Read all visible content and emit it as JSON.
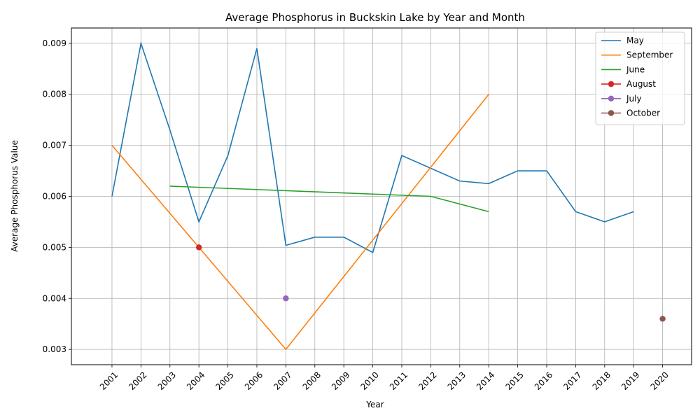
{
  "chart_data": {
    "type": "line",
    "title": "Average Phosphorus in Buckskin Lake by Year and Month",
    "xlabel": "Year",
    "ylabel": "Average Phosphorus Value",
    "xlim": [
      1999.6,
      2021.0
    ],
    "ylim": [
      0.0027,
      0.0093
    ],
    "x_ticks": [
      2001,
      2002,
      2003,
      2004,
      2005,
      2006,
      2007,
      2008,
      2009,
      2010,
      2011,
      2012,
      2013,
      2014,
      2015,
      2016,
      2017,
      2018,
      2019,
      2020
    ],
    "y_ticks": [
      0.003,
      0.004,
      0.005,
      0.006,
      0.007,
      0.008,
      0.009
    ],
    "y_tick_labels": [
      "0.003",
      "0.004",
      "0.005",
      "0.006",
      "0.007",
      "0.008",
      "0.009"
    ],
    "grid": true,
    "legend_position": "top-right",
    "series": [
      {
        "name": "May",
        "color": "#1f77b4",
        "marker": false,
        "x": [
          2001,
          2002,
          2003,
          2004,
          2005,
          2006,
          2007,
          2008,
          2009,
          2010,
          2011,
          2012,
          2013,
          2014,
          2015,
          2016,
          2017,
          2018,
          2019
        ],
        "y": [
          0.006,
          0.009,
          0.0073,
          0.0055,
          0.0068,
          0.0089,
          0.00504,
          0.0052,
          0.0052,
          0.0049,
          0.0068,
          0.00655,
          0.0063,
          0.00625,
          0.0065,
          0.0065,
          0.0057,
          0.0055,
          0.0057
        ]
      },
      {
        "name": "September",
        "color": "#ff7f0e",
        "marker": false,
        "x": [
          2001,
          2007,
          2014
        ],
        "y": [
          0.007,
          0.003,
          0.008
        ]
      },
      {
        "name": "June",
        "color": "#2ca02c",
        "marker": false,
        "x": [
          2003,
          2012,
          2014
        ],
        "y": [
          0.0062,
          0.006,
          0.0057
        ]
      },
      {
        "name": "August",
        "color": "#d62728",
        "marker": true,
        "x": [
          2004
        ],
        "y": [
          0.005
        ]
      },
      {
        "name": "July",
        "color": "#9467bd",
        "marker": true,
        "x": [
          2007
        ],
        "y": [
          0.004
        ]
      },
      {
        "name": "October",
        "color": "#8c564b",
        "marker": true,
        "x": [
          2020
        ],
        "y": [
          0.0036
        ]
      }
    ]
  }
}
